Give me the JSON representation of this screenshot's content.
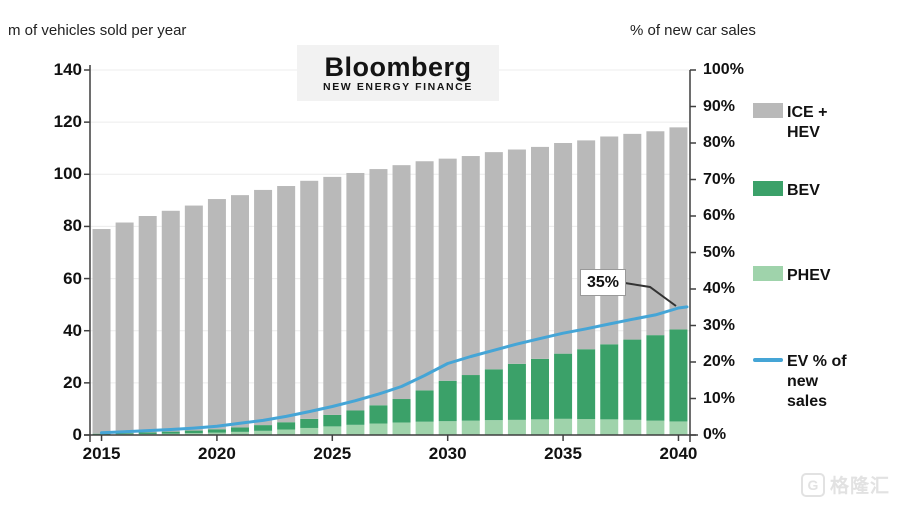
{
  "header": {
    "left_axis_title": "m of vehicles sold per year",
    "right_axis_title": "% of new car sales",
    "logo": {
      "line1": "Bloomberg",
      "line2": "NEW ENERGY FINANCE"
    }
  },
  "legend": {
    "items": [
      {
        "id": "ice-hev",
        "lines": [
          "ICE +",
          "HEV"
        ],
        "swatch": "box",
        "color": "#b9b9b9"
      },
      {
        "id": "bev",
        "lines": [
          "BEV"
        ],
        "swatch": "box",
        "color": "#3ba169"
      },
      {
        "id": "phev",
        "lines": [
          "PHEV"
        ],
        "swatch": "box",
        "color": "#9fd3ab"
      },
      {
        "id": "ev-share",
        "lines": [
          "EV % of",
          "new",
          "sales"
        ],
        "swatch": "line",
        "color": "#45a5d6"
      }
    ]
  },
  "annotation": {
    "text": "35%"
  },
  "watermark": {
    "icon_letter": "G",
    "text": "格隆汇"
  },
  "chart_data": {
    "type": "bar",
    "subtype": "stacked-bars-with-line",
    "categories": [
      2015,
      2016,
      2017,
      2018,
      2019,
      2020,
      2021,
      2022,
      2023,
      2024,
      2025,
      2026,
      2027,
      2028,
      2029,
      2030,
      2031,
      2032,
      2033,
      2034,
      2035,
      2036,
      2037,
      2038,
      2039,
      2040
    ],
    "series": [
      {
        "name": "PHEV",
        "stack_order": 1,
        "color": "#9fd3ab",
        "values": [
          0.2,
          0.3,
          0.4,
          0.5,
          0.7,
          0.9,
          1.2,
          1.6,
          2.1,
          2.7,
          3.3,
          3.9,
          4.4,
          4.8,
          5.1,
          5.3,
          5.5,
          5.7,
          5.8,
          6.0,
          6.2,
          6.1,
          6.0,
          5.8,
          5.5,
          5.2
        ]
      },
      {
        "name": "BEV",
        "stack_order": 2,
        "color": "#3ba169",
        "values": [
          0.3,
          0.4,
          0.6,
          0.8,
          1.0,
          1.3,
          1.7,
          2.2,
          2.8,
          3.5,
          4.4,
          5.5,
          7.0,
          9.0,
          12.0,
          15.5,
          17.5,
          19.5,
          21.5,
          23.2,
          25.0,
          26.8,
          28.8,
          30.8,
          32.8,
          35.3
        ]
      },
      {
        "name": "ICE + HEV",
        "stack_order": 3,
        "color": "#b9b9b9",
        "values": [
          78.5,
          80.8,
          83.0,
          84.7,
          86.3,
          88.3,
          89.1,
          90.2,
          90.6,
          91.3,
          91.3,
          91.1,
          90.6,
          89.7,
          87.9,
          85.2,
          84.0,
          83.3,
          82.2,
          81.3,
          80.8,
          80.1,
          79.7,
          78.9,
          78.2,
          77.5
        ]
      }
    ],
    "line_series": {
      "name": "EV % of new sales",
      "axis": "right",
      "color": "#45a5d6",
      "values": [
        0.6,
        0.9,
        1.2,
        1.5,
        1.9,
        2.4,
        3.2,
        4.0,
        5.1,
        6.4,
        7.8,
        9.4,
        11.2,
        13.3,
        16.3,
        19.6,
        21.5,
        23.2,
        24.9,
        26.4,
        27.9,
        29.1,
        30.4,
        31.7,
        32.9,
        34.8
      ]
    },
    "left_axis": {
      "title": "m of vehicles sold per year",
      "min": 0,
      "max": 140,
      "tick_labels": [
        "140",
        "120",
        "100",
        "80",
        "60",
        "40",
        "20",
        "0"
      ],
      "tick_values": [
        140,
        120,
        100,
        80,
        60,
        40,
        20,
        0
      ]
    },
    "right_axis": {
      "title": "% of new car sales",
      "min": 0,
      "max": 100,
      "tick_labels": [
        "100%",
        "90%",
        "80%",
        "70%",
        "60%",
        "50%",
        "40%",
        "30%",
        "20%",
        "10%",
        "0%"
      ],
      "tick_values": [
        100,
        90,
        80,
        70,
        60,
        50,
        40,
        30,
        20,
        10,
        0
      ]
    },
    "x_axis": {
      "tick_labels": [
        "2015",
        "2020",
        "2025",
        "2030",
        "2035",
        "2040"
      ],
      "tick_years": [
        2015,
        2020,
        2025,
        2030,
        2035,
        2040
      ]
    },
    "annotation": {
      "text": "35%",
      "points_to_year": 2040,
      "points_to_value_pct": 35
    },
    "grid": "horizontal-faint",
    "legend_position": "right"
  }
}
